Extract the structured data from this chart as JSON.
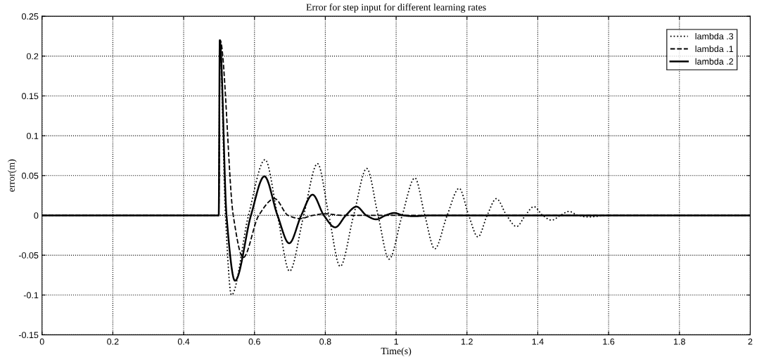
{
  "chart_data": {
    "type": "line",
    "title": "Error for step input for different learning rates",
    "xlabel": "Time(s)",
    "ylabel": "error(m)",
    "xlim": [
      0,
      2
    ],
    "xticks": [
      0,
      0.2,
      0.4,
      0.6,
      0.8,
      1,
      1.2,
      1.4,
      1.6,
      1.8,
      2
    ],
    "ylim": [
      -0.15,
      0.25
    ],
    "yticks": [
      -0.15,
      -0.1,
      -0.05,
      0,
      0.05,
      0.1,
      0.15,
      0.2,
      0.25
    ],
    "grid": true,
    "legend": "top right",
    "marker": "none",
    "series": [
      {
        "name": "lambda .3",
        "color": "#000000",
        "line_style": "dotted",
        "x": [
          0,
          0.499,
          0.502,
          0.518,
          0.535,
          0.583,
          0.63,
          0.665,
          0.699,
          0.739,
          0.778,
          0.81,
          0.842,
          0.88,
          0.917,
          0.949,
          0.98,
          1.017,
          1.053,
          1.081,
          1.109,
          1.144,
          1.178,
          1.205,
          1.231,
          1.257,
          1.283,
          1.312,
          1.34,
          1.365,
          1.389,
          1.414,
          1.439,
          1.464,
          1.488,
          1.514,
          1.54,
          1.6,
          2
        ],
        "values": [
          0,
          0,
          0.22,
          0,
          -0.1,
          0,
          0.07,
          0,
          -0.07,
          0,
          0.065,
          0,
          -0.064,
          0,
          0.059,
          0,
          -0.055,
          0,
          0.047,
          0,
          -0.042,
          0,
          0.034,
          0,
          -0.027,
          0,
          0.021,
          0,
          -0.014,
          0,
          0.011,
          0,
          -0.006,
          0,
          0.005,
          0,
          -0.002,
          0,
          0
        ]
      },
      {
        "name": "lambda .1",
        "color": "#000000",
        "line_style": "dashed",
        "x": [
          0,
          0.499,
          0.503,
          0.54,
          0.568,
          0.612,
          0.657,
          0.695,
          0.729,
          0.765,
          0.798,
          0.85,
          2
        ],
        "values": [
          0,
          0,
          0.22,
          0,
          -0.053,
          0,
          0.021,
          0,
          -0.004,
          0,
          0.002,
          0,
          0
        ]
      },
      {
        "name": "lambda .2",
        "color": "#000000",
        "line_style": "solid",
        "x": [
          0,
          0.499,
          0.502,
          0.521,
          0.545,
          0.59,
          0.628,
          0.665,
          0.698,
          0.732,
          0.764,
          0.796,
          0.828,
          0.858,
          0.888,
          0.916,
          0.944,
          0.97,
          0.995,
          1.02,
          1.05,
          1.1,
          2
        ],
        "values": [
          0,
          0,
          0.22,
          0,
          -0.082,
          0,
          0.049,
          0,
          -0.035,
          0,
          0.026,
          0,
          -0.015,
          0,
          0.011,
          0,
          -0.005,
          0,
          0.003,
          0,
          -0.001,
          0,
          0
        ]
      }
    ]
  }
}
